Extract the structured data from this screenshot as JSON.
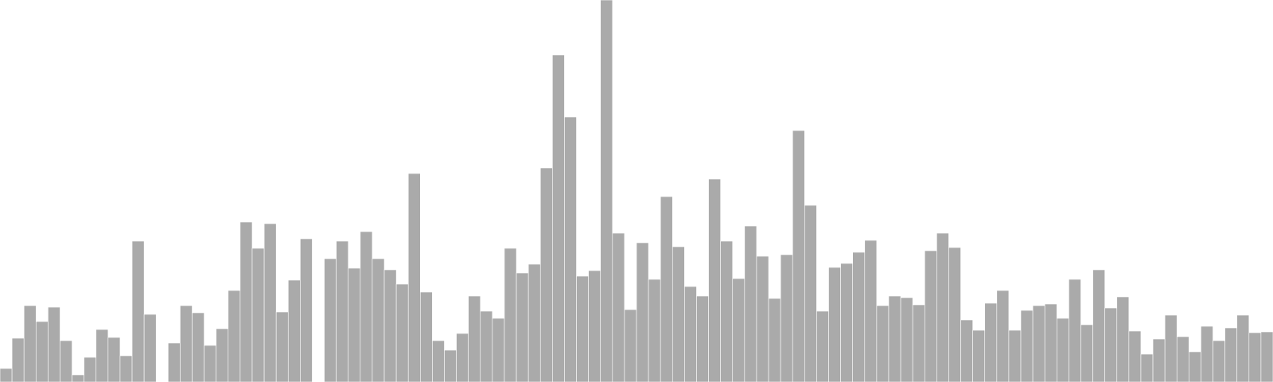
{
  "chart_data": {
    "type": "bar",
    "title": "",
    "xlabel": "",
    "ylabel": "",
    "grid": false,
    "legend": "none",
    "ylim": [
      0,
      480
    ],
    "bar_color": "#aaaaaa",
    "bar_edge_color": "#ffffff",
    "values": [
      17,
      55,
      96,
      76,
      94,
      52,
      9,
      31,
      66,
      56,
      33,
      177,
      85,
      0,
      49,
      96,
      87,
      46,
      67,
      115,
      201,
      168,
      199,
      88,
      128,
      180,
      0,
      155,
      177,
      143,
      189,
      155,
      141,
      123,
      262,
      113,
      52,
      40,
      61,
      108,
      89,
      80,
      168,
      137,
      148,
      269,
      411,
      333,
      133,
      140,
      480,
      187,
      91,
      175,
      129,
      233,
      170,
      120,
      108,
      255,
      177,
      130,
      196,
      158,
      105,
      160,
      316,
      222,
      89,
      144,
      149,
      163,
      178,
      96,
      108,
      106,
      97,
      165,
      187,
      169,
      78,
      65,
      99,
      115,
      65,
      90,
      96,
      98,
      80,
      129,
      72,
      141,
      93,
      107,
      64,
      35,
      54,
      84,
      57,
      38,
      70,
      52,
      68,
      84,
      62,
      63
    ]
  }
}
